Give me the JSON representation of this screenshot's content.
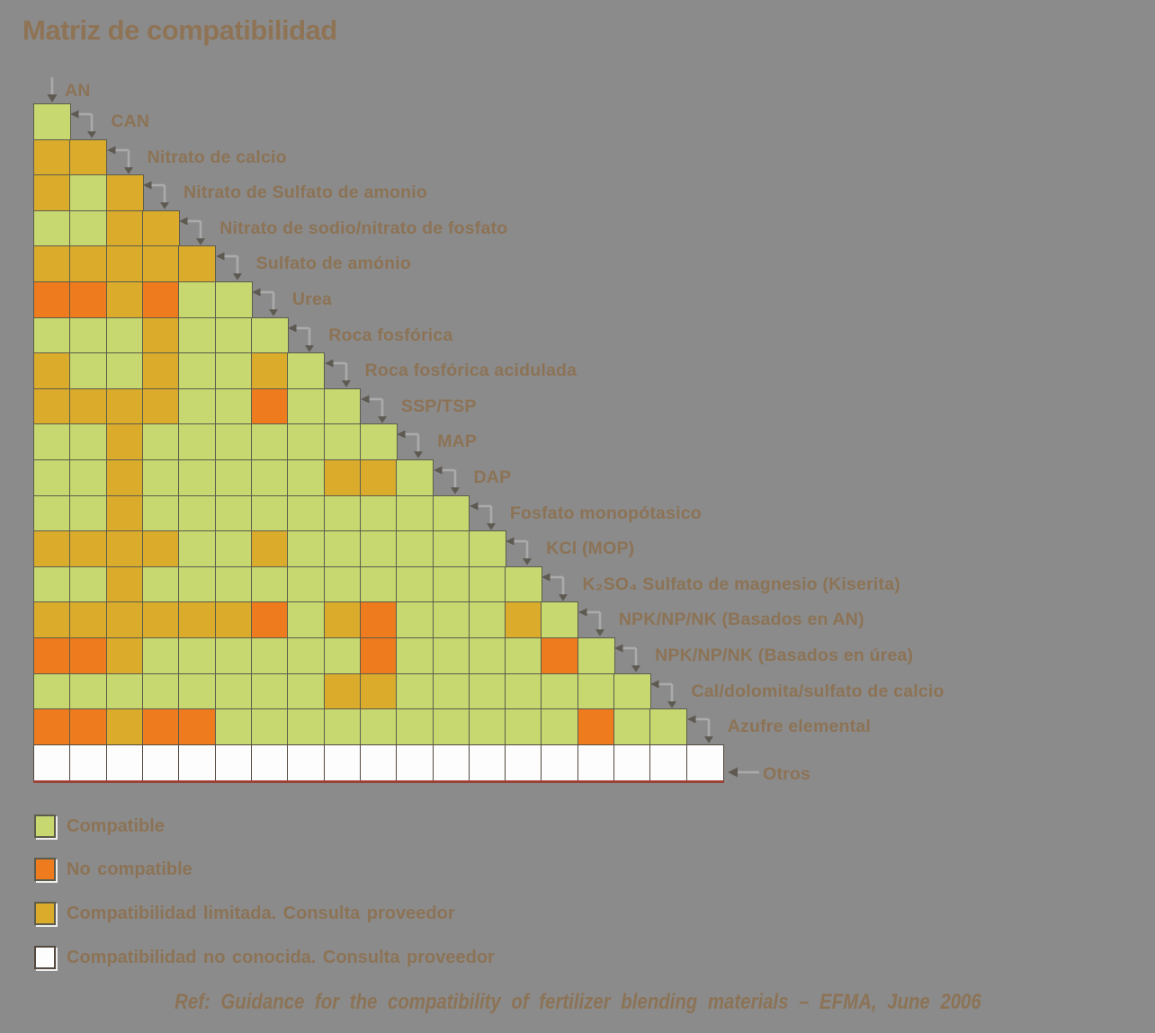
{
  "title": "Matriz de compatibilidad",
  "chart_data": {
    "type": "heatmap",
    "subtype": "triangular-compatibility-matrix",
    "items": [
      "AN",
      "CAN",
      "Nitrato de calcio",
      "Nitrato de Sulfato de amonio",
      "Nitrato de sodio/nitrato de fosfato",
      "Sulfato de amónio",
      "Urea",
      "Roca fosfórica",
      "Roca fosfórica acidulada",
      "SSP/TSP",
      "MAP",
      "DAP",
      "Fosfato monopótasico",
      "KCl (MOP)",
      "K₂SO₄ Sulfato de magnesio (Kiserita)",
      "NPK/NP/NK (Basados en AN)",
      "NPK/NP/NK (Basados en úrea)",
      "Cal/dolomita/sulfato de calcio",
      "Azufre elemental",
      "Otros"
    ],
    "codes": {
      "G": "Compatible",
      "O": "No compatible",
      "Y": "Compatibilidad limitada. Consulta proveedor",
      "W": "Compatibilidad no conocida. Consulta proveedor"
    },
    "matrix_rows": [
      {
        "item": "CAN",
        "values": [
          "G"
        ]
      },
      {
        "item": "Nitrato de calcio",
        "values": [
          "Y",
          "Y"
        ]
      },
      {
        "item": "Nitrato de Sulfato de amonio",
        "values": [
          "Y",
          "G",
          "Y"
        ]
      },
      {
        "item": "Nitrato de sodio/nitrato de fosfato",
        "values": [
          "G",
          "G",
          "Y",
          "Y"
        ]
      },
      {
        "item": "Sulfato de amónio",
        "values": [
          "Y",
          "Y",
          "Y",
          "Y",
          "Y"
        ]
      },
      {
        "item": "Urea",
        "values": [
          "O",
          "O",
          "Y",
          "O",
          "G",
          "G"
        ]
      },
      {
        "item": "Roca fosfórica",
        "values": [
          "G",
          "G",
          "G",
          "Y",
          "G",
          "G",
          "G"
        ]
      },
      {
        "item": "Roca fosfórica acidulada",
        "values": [
          "Y",
          "G",
          "G",
          "Y",
          "G",
          "G",
          "Y",
          "G"
        ]
      },
      {
        "item": "SSP/TSP",
        "values": [
          "Y",
          "Y",
          "Y",
          "Y",
          "G",
          "G",
          "O",
          "G",
          "G"
        ]
      },
      {
        "item": "MAP",
        "values": [
          "G",
          "G",
          "Y",
          "G",
          "G",
          "G",
          "G",
          "G",
          "G",
          "G"
        ]
      },
      {
        "item": "DAP",
        "values": [
          "G",
          "G",
          "Y",
          "G",
          "G",
          "G",
          "G",
          "G",
          "Y",
          "Y",
          "G"
        ]
      },
      {
        "item": "Fosfato monopótasico",
        "values": [
          "G",
          "G",
          "Y",
          "G",
          "G",
          "G",
          "G",
          "G",
          "G",
          "G",
          "G",
          "G"
        ]
      },
      {
        "item": "KCl (MOP)",
        "values": [
          "Y",
          "Y",
          "Y",
          "Y",
          "G",
          "G",
          "Y",
          "G",
          "G",
          "G",
          "G",
          "G",
          "G"
        ]
      },
      {
        "item": "K₂SO₄ Sulfato de magnesio (Kiserita)",
        "values": [
          "G",
          "G",
          "Y",
          "G",
          "G",
          "G",
          "G",
          "G",
          "G",
          "G",
          "G",
          "G",
          "G",
          "G"
        ]
      },
      {
        "item": "NPK/NP/NK (Basados en AN)",
        "values": [
          "Y",
          "Y",
          "Y",
          "Y",
          "Y",
          "Y",
          "O",
          "G",
          "Y",
          "O",
          "G",
          "G",
          "G",
          "Y",
          "G"
        ]
      },
      {
        "item": "NPK/NP/NK (Basados en úrea)",
        "values": [
          "O",
          "O",
          "Y",
          "G",
          "G",
          "G",
          "G",
          "G",
          "G",
          "O",
          "G",
          "G",
          "G",
          "G",
          "O",
          "G"
        ]
      },
      {
        "item": "Cal/dolomita/sulfato de calcio",
        "values": [
          "G",
          "G",
          "G",
          "G",
          "G",
          "G",
          "G",
          "G",
          "Y",
          "Y",
          "G",
          "G",
          "G",
          "G",
          "G",
          "G",
          "G"
        ]
      },
      {
        "item": "Azufre elemental",
        "values": [
          "O",
          "O",
          "Y",
          "O",
          "O",
          "G",
          "G",
          "G",
          "G",
          "G",
          "G",
          "G",
          "G",
          "G",
          "G",
          "O",
          "G",
          "G"
        ]
      },
      {
        "item": "Otros",
        "values": [
          "W",
          "W",
          "W",
          "W",
          "W",
          "W",
          "W",
          "W",
          "W",
          "W",
          "W",
          "W",
          "W",
          "W",
          "W",
          "W",
          "W",
          "W",
          "W"
        ]
      }
    ]
  },
  "legend": [
    {
      "code": "G",
      "label": "Compatible"
    },
    {
      "code": "O",
      "label": "No compatible"
    },
    {
      "code": "Y",
      "label": "Compatibilidad limitada. Consulta proveedor"
    },
    {
      "code": "W",
      "label": "Compatibilidad no conocida. Consulta proveedor"
    }
  ],
  "footer": "Ref: Guidance for the compatibility of fertilizer blending materials – EFMA, June 2006",
  "colors": {
    "G": "#c7d871",
    "O": "#ee7c1e",
    "Y": "#dbac2c",
    "W": "#fdfdfd",
    "background": "#8b8b8b",
    "title": "#8f7355",
    "text": "#8c7356",
    "cell_border": "#5d5c4b",
    "white_cell_border": "#53493f",
    "arrow_shaft": "#ababab",
    "arrow_head": "#5e5a52",
    "red_underline": "#9c4136"
  }
}
